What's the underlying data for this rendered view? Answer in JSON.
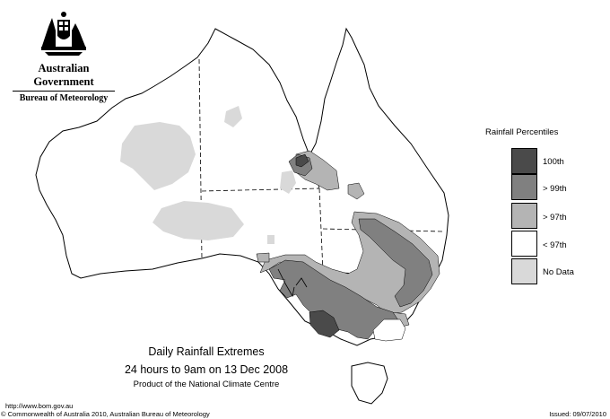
{
  "header": {
    "organisation": "Australian Government",
    "department": "Bureau of Meteorology"
  },
  "legend": {
    "title": "Rainfall Percentiles",
    "items": [
      {
        "label": "100th",
        "color": "#4a4a4a"
      },
      {
        "label": "> 99th",
        "color": "#808080"
      },
      {
        "label": "> 97th",
        "color": "#b4b4b4"
      },
      {
        "label": "< 97th",
        "color": "#ffffff"
      },
      {
        "label": "No Data",
        "color": "#d9d9d9"
      }
    ]
  },
  "title": {
    "line1": "Daily Rainfall Extremes",
    "line2": "24 hours to 9am on 13 Dec 2008",
    "line3": "Product of the National Climate Centre"
  },
  "footer": {
    "url": "http://www.bom.gov.au",
    "copyright": "© Commonwealth of Australia 2010, Australian Bureau of Meteorology",
    "issued": "Issued: 09/07/2010"
  }
}
